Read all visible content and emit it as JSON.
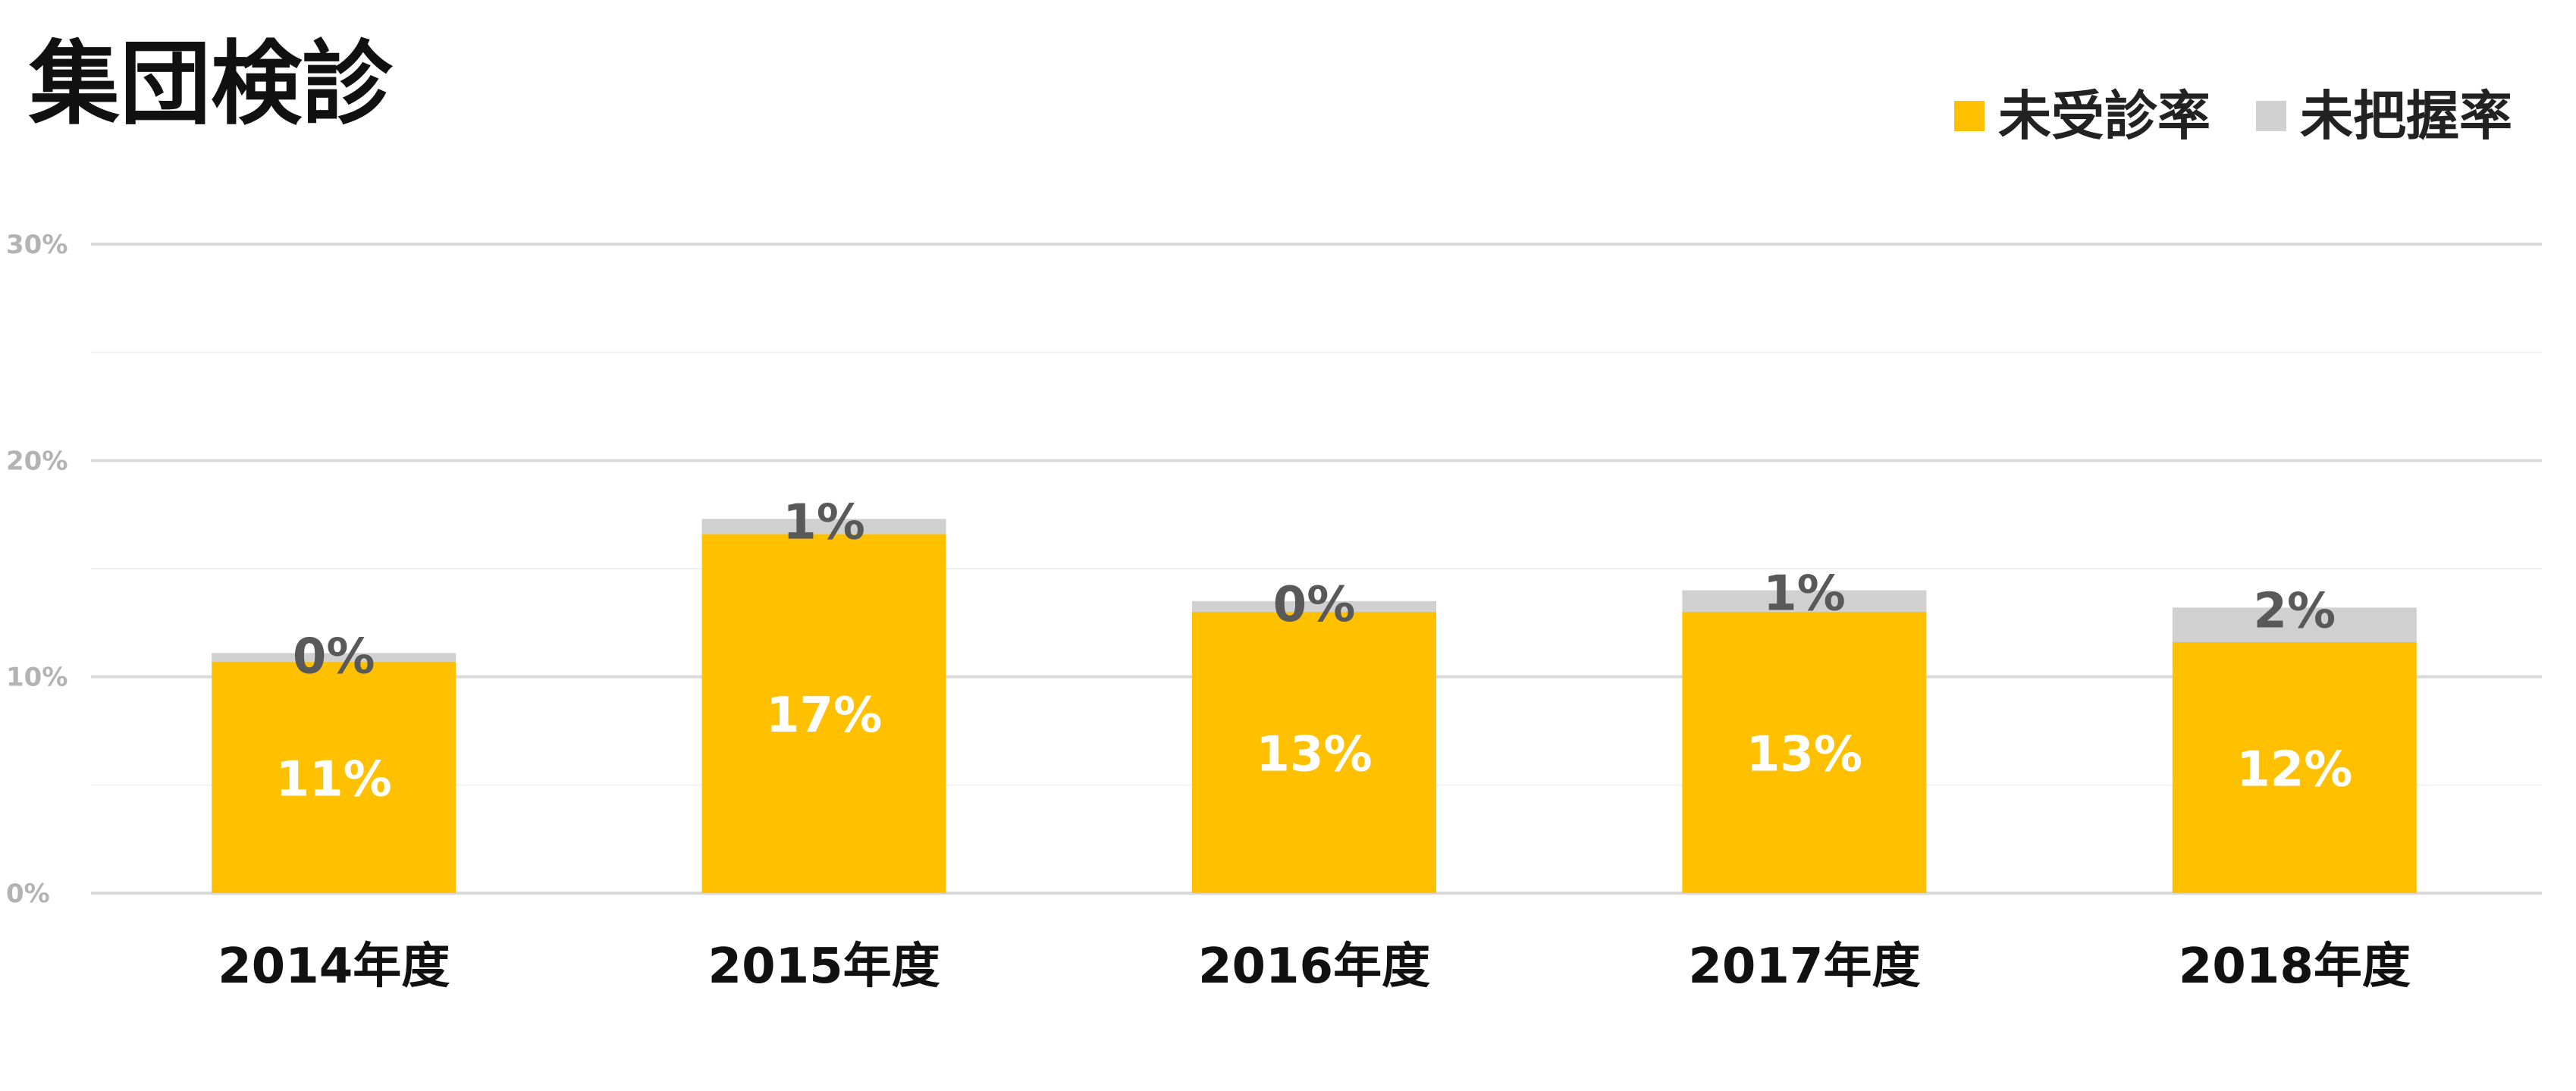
{
  "chart_data": {
    "type": "bar",
    "stacked": true,
    "title": "集団検診",
    "categories": [
      "2014年度",
      "2015年度",
      "2016年度",
      "2017年度",
      "2018年度"
    ],
    "series": [
      {
        "name": "未受診率",
        "color": "#FFC000",
        "values": [
          10.7,
          16.6,
          13.0,
          13.0,
          11.6
        ],
        "labels": [
          "11%",
          "17%",
          "13%",
          "13%",
          "12%"
        ]
      },
      {
        "name": "未把握率",
        "color": "#D0D0D0",
        "values": [
          0.4,
          0.7,
          0.5,
          1.0,
          1.6
        ],
        "labels": [
          "0%",
          "1%",
          "0%",
          "1%",
          "2%"
        ]
      }
    ],
    "ylim": [
      0,
      30
    ],
    "yticks": [
      "0%",
      "10%",
      "20%",
      "30%"
    ],
    "grid": true,
    "legend_position": "top-right"
  }
}
